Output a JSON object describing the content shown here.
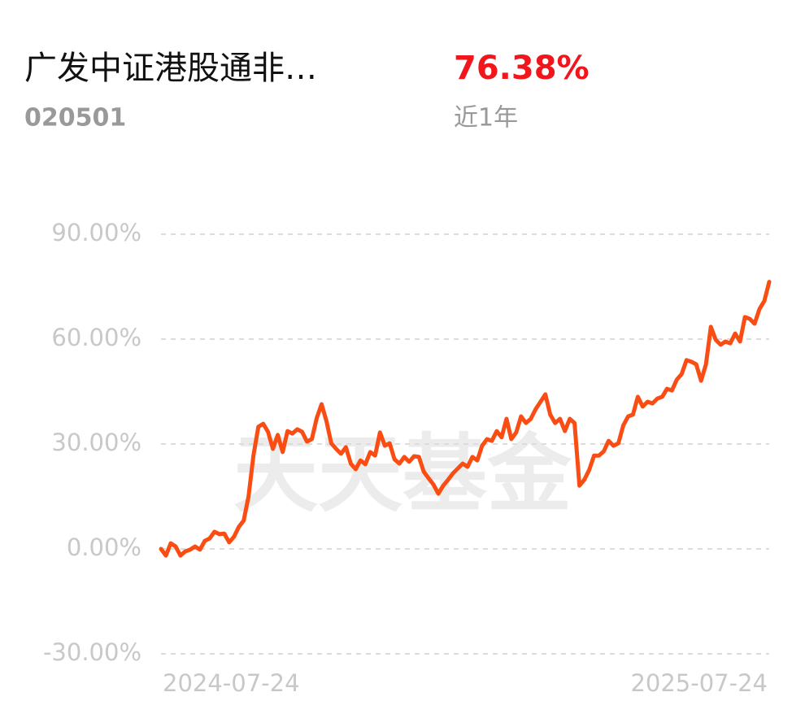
{
  "header": {
    "fund_name": "广发中证港股通非…",
    "fund_code": "020501",
    "return": "76.38%",
    "period": "近1年"
  },
  "watermark": "天天基金",
  "chart_data": {
    "type": "line",
    "categories": [
      "2024-07-24",
      null,
      null,
      null,
      null,
      null,
      null,
      null,
      null,
      null,
      null,
      null,
      null,
      null,
      null,
      null,
      null,
      null,
      null,
      null,
      null,
      null,
      null,
      null,
      null,
      null,
      null,
      null,
      null,
      null,
      null,
      null,
      null,
      null,
      null,
      null,
      null,
      null,
      null,
      null,
      null,
      null,
      null,
      null,
      null,
      null,
      null,
      null,
      null,
      null,
      null,
      null,
      null,
      null,
      null,
      null,
      null,
      null,
      null,
      null,
      null,
      null,
      null,
      null,
      null,
      null,
      null,
      null,
      null,
      null,
      null,
      null,
      null,
      null,
      null,
      null,
      null,
      null,
      null,
      null,
      null,
      null,
      null,
      null,
      null,
      null,
      null,
      null,
      null,
      null,
      null,
      null,
      null,
      null,
      null,
      null,
      null,
      null,
      null,
      null,
      null,
      null,
      null,
      null,
      null,
      null,
      null,
      null,
      null,
      null,
      null,
      null,
      null,
      null,
      null,
      null,
      null,
      null,
      null,
      null,
      null,
      null,
      null,
      null,
      null,
      "2025-07-24"
    ],
    "values": [
      0,
      -1.9,
      1.6,
      0.7,
      -1.9,
      -0.7,
      -0.2,
      0.7,
      -0.2,
      2.3,
      3.0,
      4.9,
      4.2,
      4.4,
      1.9,
      3.5,
      6.3,
      8.1,
      15.1,
      26.7,
      34.9,
      35.8,
      33.5,
      28.6,
      32.6,
      27.7,
      33.7,
      33.0,
      34.2,
      33.5,
      30.7,
      31.4,
      37.4,
      41.4,
      36.5,
      30.2,
      28.6,
      27.2,
      29.1,
      24.4,
      22.8,
      25.3,
      24.2,
      27.7,
      26.7,
      33.3,
      29.5,
      30.2,
      25.6,
      24.4,
      26.3,
      24.9,
      26.5,
      26.3,
      22.1,
      20.2,
      18.4,
      15.8,
      18.1,
      19.8,
      21.6,
      23.0,
      24.4,
      23.5,
      26.3,
      25.3,
      29.5,
      31.4,
      30.9,
      33.7,
      31.9,
      37.2,
      31.4,
      33.3,
      37.9,
      36.0,
      37.2,
      40.0,
      42.1,
      44.2,
      38.4,
      36.0,
      37.2,
      33.7,
      37.2,
      36.0,
      18.1,
      19.8,
      22.6,
      26.7,
      26.7,
      27.9,
      30.9,
      29.5,
      30.2,
      35.3,
      37.9,
      38.4,
      43.5,
      40.7,
      42.1,
      41.6,
      43.0,
      43.5,
      45.8,
      45.3,
      48.4,
      50.0,
      54.0,
      53.5,
      52.8,
      48.1,
      52.8,
      63.5,
      59.8,
      58.4,
      59.3,
      58.8,
      61.6,
      59.3,
      66.3,
      65.8,
      64.4,
      68.6,
      70.9,
      76.38
    ],
    "color": "#fa4d14",
    "ylim": [
      -30,
      90
    ],
    "yticks": [
      {
        "value": -30,
        "label": "-30.00%"
      },
      {
        "value": 0,
        "label": "0.00%"
      },
      {
        "value": 30,
        "label": "30.00%"
      },
      {
        "value": 60,
        "label": "60.00%"
      },
      {
        "value": 90,
        "label": "90.00%"
      }
    ],
    "grid": true
  }
}
